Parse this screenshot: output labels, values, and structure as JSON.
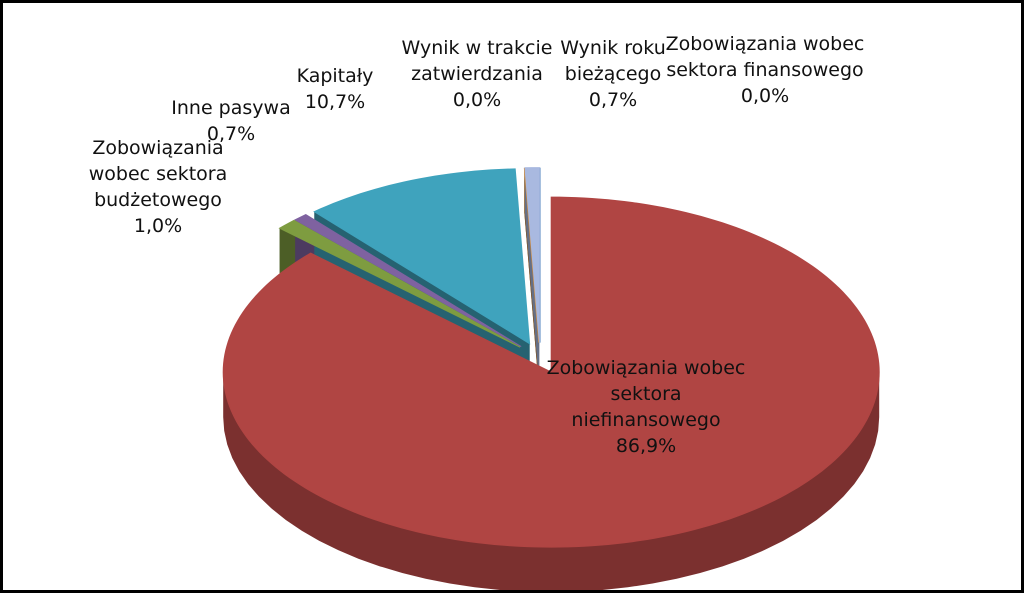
{
  "chart_data": {
    "type": "pie3d",
    "categories": [
      "Zobowiązania wobec sektora finansowego",
      "Zobowiązania wobec sektora niefinansowego",
      "Zobowiązania wobec sektora budżetowego",
      "Inne pasywa",
      "Kapitały",
      "Wynik w trakcie zatwierdzania",
      "Wynik roku bieżącego"
    ],
    "values": [
      0.0,
      86.9,
      1.0,
      0.7,
      10.7,
      0.0,
      0.7
    ],
    "value_labels": [
      "0,0%",
      "86,9%",
      "1,0%",
      "0,7%",
      "10,7%",
      "0,0%",
      "0,7%"
    ],
    "colors": [
      "#4f81bd",
      "#b04543",
      "#7e9c40",
      "#7f62a0",
      "#3fa3bd",
      "#d08a3a",
      "#a9b9e0"
    ]
  }
}
